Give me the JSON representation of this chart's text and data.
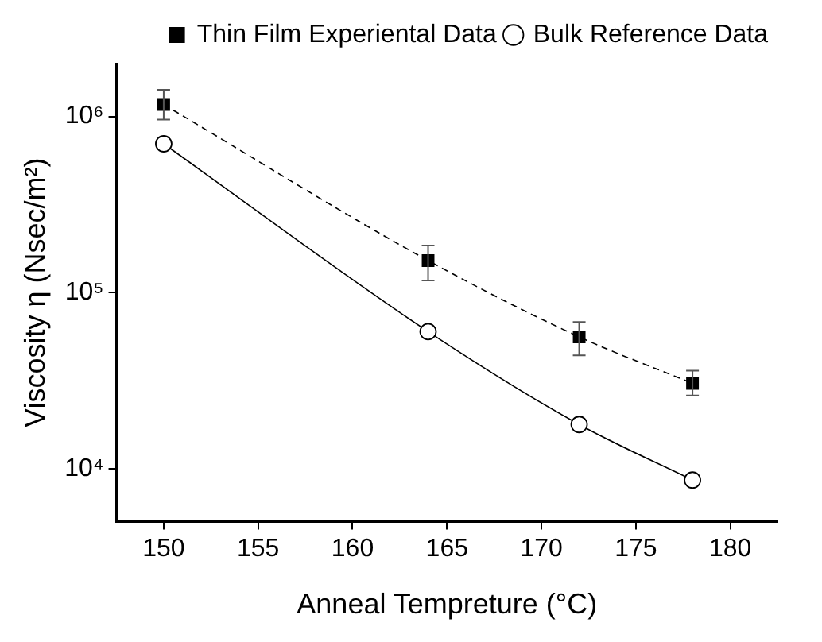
{
  "chart_data": {
    "type": "line",
    "xlabel": "Anneal Tempreture (°C)",
    "ylabel": "Viscosity η (Nsec/m²)",
    "log": "y",
    "xlim": [
      147.5,
      182.5
    ],
    "xticks": [
      150,
      155,
      160,
      165,
      170,
      175,
      180
    ],
    "ylim": [
      5000,
      2000000
    ],
    "yticks": [
      {
        "value": 10000,
        "label": "10⁴"
      },
      {
        "value": 100000,
        "label": "10⁵"
      },
      {
        "value": 1000000,
        "label": "10⁶"
      }
    ],
    "grid": false,
    "legend": "top right",
    "x": [
      150,
      164,
      172,
      178
    ],
    "series": [
      {
        "name": "Thin Film Experiental Data",
        "color": "#000000",
        "marker": "square",
        "line_style": "dashed",
        "values": [
          1170000,
          152000,
          56000,
          30500
        ],
        "errors": [
          [
            960000,
            1420000
          ],
          [
            117000,
            185000
          ],
          [
            44000,
            68000
          ],
          [
            26000,
            36000
          ]
        ]
      },
      {
        "name": "Bulk Reference Data",
        "color": "#000000",
        "marker": "circle",
        "line_style": "solid",
        "values": [
          700000,
          60000,
          17800,
          8600
        ]
      }
    ]
  }
}
